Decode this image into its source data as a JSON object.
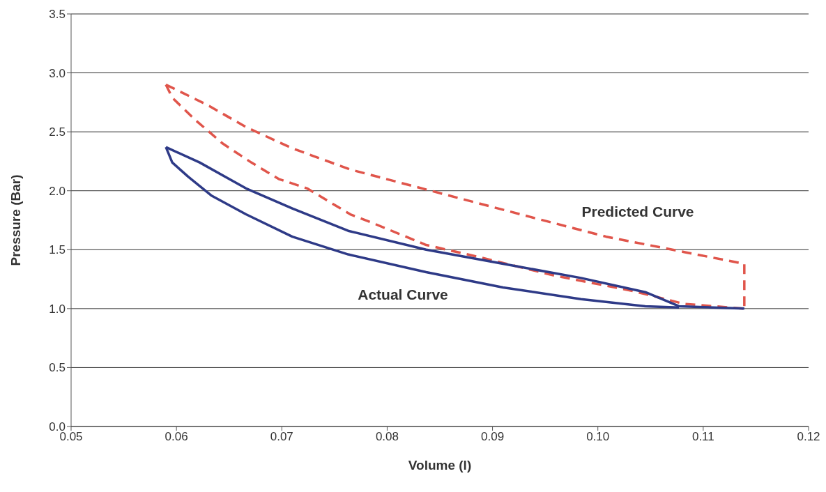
{
  "chart_data": {
    "type": "line",
    "xlabel": "Volume (l)",
    "ylabel": "Pressure (Bar)",
    "xlim": [
      0.05,
      0.12
    ],
    "xticks": [
      {
        "value": 0.05,
        "label": "0.05"
      },
      {
        "value": 0.06,
        "label": "0.06"
      },
      {
        "value": 0.07,
        "label": "0.07"
      },
      {
        "value": 0.08,
        "label": "0.08"
      },
      {
        "value": 0.09,
        "label": "0.09"
      },
      {
        "value": 0.1,
        "label": "0.10"
      },
      {
        "value": 0.11,
        "label": "0.11"
      },
      {
        "value": 0.12,
        "label": "0.12"
      }
    ],
    "ylim": [
      0,
      3.5
    ],
    "yticks": [
      {
        "value": 0,
        "label": "0.0"
      },
      {
        "value": 0.5,
        "label": "0.5"
      },
      {
        "value": 1,
        "label": "1.0"
      },
      {
        "value": 1.5,
        "label": "1.5"
      },
      {
        "value": 2,
        "label": "2.0"
      },
      {
        "value": 2.5,
        "label": "2.5"
      },
      {
        "value": 3,
        "label": "3.0"
      },
      {
        "value": 3.5,
        "label": "3.5"
      }
    ],
    "grid": "y",
    "marker": "none",
    "series": [
      {
        "color": "#e0554b",
        "line_style": "dashed",
        "x": [
          0.059,
          0.0631,
          0.0666,
          0.071,
          0.0765,
          0.0867,
          0.0935,
          0.1008,
          0.1082,
          0.1139,
          0.1139
        ],
        "values": [
          2.9,
          2.72,
          2.54,
          2.36,
          2.18,
          1.94,
          1.78,
          1.61,
          1.48,
          1.38,
          1.0
        ]
      },
      {
        "color": "#e0554b",
        "line_style": "dashed",
        "x": [
          0.059,
          0.0596,
          0.0618,
          0.0644,
          0.0671,
          0.0697,
          0.0724,
          0.0765,
          0.0788,
          0.0837,
          0.0886,
          0.0959,
          0.1033,
          0.1082,
          0.1139
        ],
        "values": [
          2.9,
          2.79,
          2.6,
          2.4,
          2.24,
          2.1,
          2.02,
          1.8,
          1.72,
          1.54,
          1.44,
          1.28,
          1.15,
          1.04,
          1.0
        ]
      },
      {
        "color": "#2e3a87",
        "line_style": "solid",
        "x": [
          0.059,
          0.0622,
          0.0666,
          0.071,
          0.0763,
          0.0837,
          0.091,
          0.0984,
          0.1045,
          0.1077,
          0.1139
        ],
        "values": [
          2.37,
          2.24,
          2.02,
          1.85,
          1.66,
          1.5,
          1.38,
          1.26,
          1.14,
          1.02,
          1.0
        ]
      },
      {
        "color": "#2e3a87",
        "line_style": "solid",
        "x": [
          0.059,
          0.0596,
          0.0611,
          0.0633,
          0.0666,
          0.071,
          0.0763,
          0.0837,
          0.091,
          0.0984,
          0.1045,
          0.1077
        ],
        "values": [
          2.37,
          2.24,
          2.12,
          1.96,
          1.8,
          1.61,
          1.46,
          1.31,
          1.18,
          1.08,
          1.02,
          1.01
        ]
      }
    ],
    "annotations": [
      "Predicted Curve",
      "Actual Curve"
    ]
  }
}
